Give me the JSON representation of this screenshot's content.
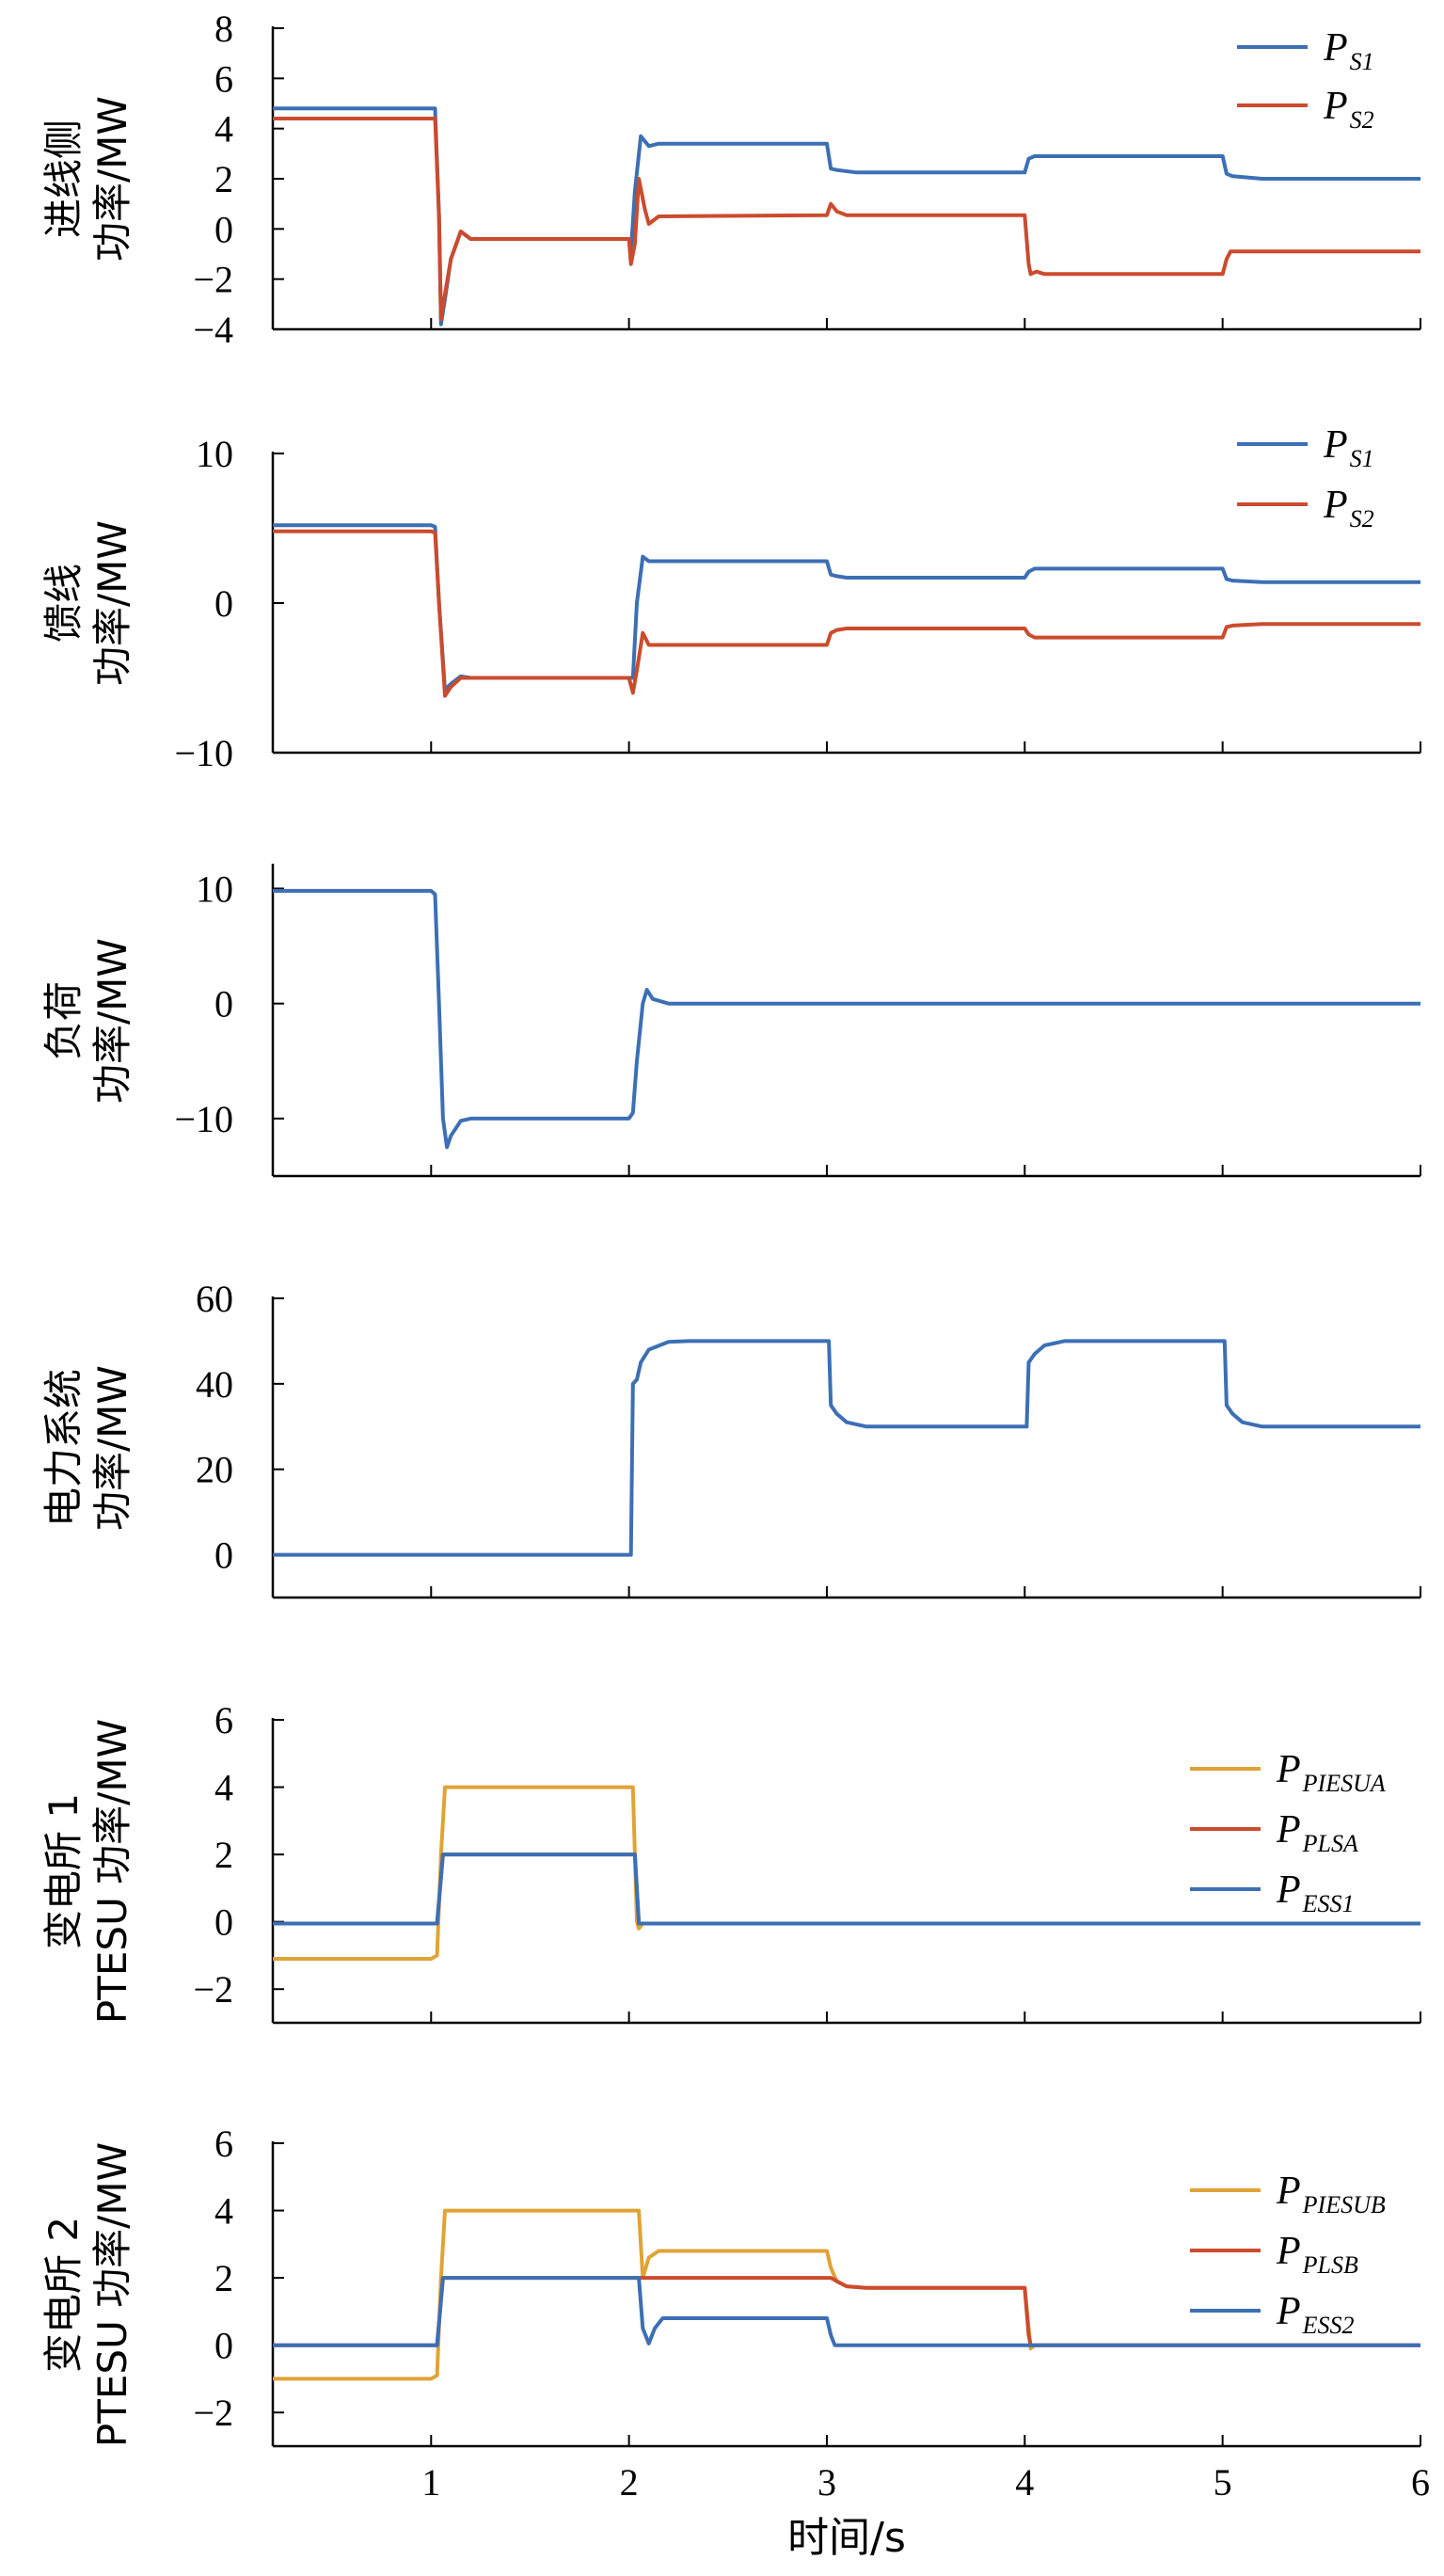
{
  "colors": {
    "blue": "#3c6fb4",
    "red": "#cb4b2d",
    "orange": "#e0a336",
    "axis": "#000000"
  },
  "chart_data": [
    {
      "type": "line",
      "ylabel": [
        "进线侧",
        "功率/MW"
      ],
      "ylim": [
        -4,
        8
      ],
      "yticks": [
        -4,
        -2,
        0,
        2,
        4,
        6,
        8
      ],
      "xlim": [
        0.2,
        6
      ],
      "xticks": [
        1,
        2,
        3,
        4,
        5,
        6
      ],
      "legend": "top-right",
      "series": [
        {
          "P": "P",
          "sub": "S1",
          "color": "blue",
          "points": [
            [
              0.2,
              4.8
            ],
            [
              1.0,
              4.8
            ],
            [
              1.02,
              4.8
            ],
            [
              1.04,
              0.5
            ],
            [
              1.05,
              -3.8
            ],
            [
              1.07,
              -2.8
            ],
            [
              1.1,
              -1.2
            ],
            [
              1.15,
              -0.1
            ],
            [
              1.2,
              -0.4
            ],
            [
              1.3,
              -0.4
            ],
            [
              2.0,
              -0.4
            ],
            [
              2.01,
              -0.9
            ],
            [
              2.03,
              1.5
            ],
            [
              2.06,
              3.7
            ],
            [
              2.1,
              3.3
            ],
            [
              2.15,
              3.4
            ],
            [
              3.0,
              3.4
            ],
            [
              3.02,
              2.4
            ],
            [
              3.05,
              2.35
            ],
            [
              3.15,
              2.25
            ],
            [
              4.0,
              2.25
            ],
            [
              4.02,
              2.8
            ],
            [
              4.05,
              2.9
            ],
            [
              5.0,
              2.9
            ],
            [
              5.02,
              2.2
            ],
            [
              5.05,
              2.1
            ],
            [
              5.2,
              2.0
            ],
            [
              6.0,
              2.0
            ]
          ]
        },
        {
          "P": "P",
          "sub": "S2",
          "color": "red",
          "points": [
            [
              0.2,
              4.4
            ],
            [
              1.0,
              4.4
            ],
            [
              1.02,
              4.4
            ],
            [
              1.04,
              0.5
            ],
            [
              1.05,
              -3.6
            ],
            [
              1.07,
              -2.6
            ],
            [
              1.1,
              -1.2
            ],
            [
              1.15,
              -0.1
            ],
            [
              1.2,
              -0.4
            ],
            [
              1.3,
              -0.4
            ],
            [
              2.0,
              -0.4
            ],
            [
              2.01,
              -1.4
            ],
            [
              2.03,
              -0.6
            ],
            [
              2.05,
              2.0
            ],
            [
              2.08,
              0.8
            ],
            [
              2.1,
              0.2
            ],
            [
              2.15,
              0.5
            ],
            [
              3.0,
              0.55
            ],
            [
              3.02,
              1.0
            ],
            [
              3.05,
              0.7
            ],
            [
              3.1,
              0.55
            ],
            [
              4.0,
              0.55
            ],
            [
              4.02,
              -1.4
            ],
            [
              4.03,
              -1.8
            ],
            [
              4.06,
              -1.7
            ],
            [
              4.1,
              -1.8
            ],
            [
              5.0,
              -1.8
            ],
            [
              5.02,
              -1.2
            ],
            [
              5.04,
              -0.9
            ],
            [
              5.1,
              -0.9
            ],
            [
              6.0,
              -0.9
            ]
          ]
        }
      ]
    },
    {
      "type": "line",
      "ylabel": [
        "馈线",
        "功率/MW"
      ],
      "ylim": [
        -10,
        10
      ],
      "yticks": [
        -10,
        0,
        10
      ],
      "xlim": [
        0.2,
        6
      ],
      "xticks": [
        1,
        2,
        3,
        4,
        5,
        6
      ],
      "legend": "top-right",
      "series": [
        {
          "P": "P",
          "sub": "S1",
          "color": "blue",
          "points": [
            [
              0.2,
              5.2
            ],
            [
              1.0,
              5.2
            ],
            [
              1.02,
              5.1
            ],
            [
              1.04,
              0
            ],
            [
              1.07,
              -5.8
            ],
            [
              1.1,
              -5.4
            ],
            [
              1.15,
              -4.9
            ],
            [
              1.2,
              -5.0
            ],
            [
              2.0,
              -5.0
            ],
            [
              2.02,
              -5.0
            ],
            [
              2.04,
              0
            ],
            [
              2.07,
              3.1
            ],
            [
              2.1,
              2.8
            ],
            [
              2.15,
              2.8
            ],
            [
              3.0,
              2.8
            ],
            [
              3.02,
              1.9
            ],
            [
              3.05,
              1.8
            ],
            [
              3.1,
              1.7
            ],
            [
              4.0,
              1.7
            ],
            [
              4.02,
              2.1
            ],
            [
              4.05,
              2.3
            ],
            [
              5.0,
              2.3
            ],
            [
              5.02,
              1.6
            ],
            [
              5.05,
              1.5
            ],
            [
              5.2,
              1.4
            ],
            [
              6.0,
              1.4
            ]
          ]
        },
        {
          "P": "P",
          "sub": "S2",
          "color": "red",
          "points": [
            [
              0.2,
              4.8
            ],
            [
              1.0,
              4.8
            ],
            [
              1.02,
              4.7
            ],
            [
              1.04,
              0
            ],
            [
              1.07,
              -6.2
            ],
            [
              1.1,
              -5.6
            ],
            [
              1.15,
              -5.0
            ],
            [
              1.2,
              -5.0
            ],
            [
              2.0,
              -5.0
            ],
            [
              2.02,
              -6.0
            ],
            [
              2.04,
              -4.5
            ],
            [
              2.07,
              -2.0
            ],
            [
              2.1,
              -2.8
            ],
            [
              2.15,
              -2.8
            ],
            [
              3.0,
              -2.8
            ],
            [
              3.02,
              -2.0
            ],
            [
              3.05,
              -1.8
            ],
            [
              3.1,
              -1.7
            ],
            [
              4.0,
              -1.7
            ],
            [
              4.02,
              -2.1
            ],
            [
              4.05,
              -2.3
            ],
            [
              5.0,
              -2.3
            ],
            [
              5.02,
              -1.6
            ],
            [
              5.05,
              -1.5
            ],
            [
              5.2,
              -1.4
            ],
            [
              6.0,
              -1.4
            ]
          ]
        }
      ]
    },
    {
      "type": "line",
      "ylabel": [
        "负荷",
        "功率/MW"
      ],
      "ylim": [
        -15,
        12
      ],
      "yticks": [
        -10,
        0,
        10
      ],
      "xlim": [
        0.2,
        6
      ],
      "xticks": [
        1,
        2,
        3,
        4,
        5,
        6
      ],
      "series": [
        {
          "color": "blue",
          "points": [
            [
              0.2,
              9.8
            ],
            [
              1.0,
              9.8
            ],
            [
              1.02,
              9.5
            ],
            [
              1.04,
              0
            ],
            [
              1.06,
              -10
            ],
            [
              1.08,
              -12.5
            ],
            [
              1.1,
              -11.5
            ],
            [
              1.15,
              -10.2
            ],
            [
              1.2,
              -10.0
            ],
            [
              2.0,
              -10.0
            ],
            [
              2.02,
              -9.5
            ],
            [
              2.04,
              -5
            ],
            [
              2.07,
              0
            ],
            [
              2.09,
              1.2
            ],
            [
              2.12,
              0.4
            ],
            [
              2.2,
              0
            ],
            [
              6.0,
              0
            ]
          ]
        }
      ]
    },
    {
      "type": "line",
      "ylabel": [
        "电力系统",
        "功率/MW"
      ],
      "ylim": [
        -10,
        60
      ],
      "yticks": [
        0,
        20,
        40,
        60
      ],
      "xlim": [
        0.2,
        6
      ],
      "xticks": [
        1,
        2,
        3,
        4,
        5,
        6
      ],
      "series": [
        {
          "color": "blue",
          "points": [
            [
              0.2,
              0
            ],
            [
              2.0,
              0
            ],
            [
              2.01,
              0
            ],
            [
              2.02,
              40
            ],
            [
              2.04,
              41
            ],
            [
              2.06,
              45
            ],
            [
              2.1,
              48
            ],
            [
              2.2,
              49.8
            ],
            [
              2.3,
              50
            ],
            [
              3.0,
              50
            ],
            [
              3.01,
              50
            ],
            [
              3.02,
              35
            ],
            [
              3.05,
              33
            ],
            [
              3.1,
              31
            ],
            [
              3.2,
              30
            ],
            [
              4.0,
              30
            ],
            [
              4.01,
              30
            ],
            [
              4.02,
              45
            ],
            [
              4.05,
              47
            ],
            [
              4.1,
              49
            ],
            [
              4.2,
              50
            ],
            [
              5.0,
              50
            ],
            [
              5.01,
              50
            ],
            [
              5.02,
              35
            ],
            [
              5.05,
              33
            ],
            [
              5.1,
              31
            ],
            [
              5.2,
              30
            ],
            [
              6.0,
              30
            ]
          ]
        }
      ]
    },
    {
      "type": "line",
      "ylabel": [
        "变电所 1",
        "PTESU 功率/MW"
      ],
      "ylim": [
        -3,
        6
      ],
      "yticks": [
        -2,
        0,
        2,
        4,
        6
      ],
      "xlim": [
        0.2,
        6
      ],
      "xticks": [
        1,
        2,
        3,
        4,
        5,
        6
      ],
      "legend": "right",
      "series": [
        {
          "P": "P",
          "sub": "PIESUA",
          "color": "orange",
          "points": [
            [
              0.2,
              -1.1
            ],
            [
              1.0,
              -1.1
            ],
            [
              1.03,
              -1.0
            ],
            [
              1.05,
              2.0
            ],
            [
              1.07,
              4.0
            ],
            [
              2.0,
              4.0
            ],
            [
              2.02,
              4.0
            ],
            [
              2.04,
              0
            ],
            [
              2.05,
              -0.2
            ],
            [
              2.07,
              -0.05
            ],
            [
              6.0,
              -0.05
            ]
          ]
        },
        {
          "P": "P",
          "sub": "PLSA",
          "color": "red",
          "points": [
            [
              0.2,
              -0.05
            ],
            [
              1.03,
              -0.05
            ],
            [
              1.06,
              2.0
            ],
            [
              2.0,
              2.0
            ],
            [
              2.03,
              2.0
            ],
            [
              2.05,
              -0.05
            ],
            [
              6.0,
              -0.05
            ]
          ]
        },
        {
          "P": "P",
          "sub": "ESS1",
          "color": "blue",
          "points": [
            [
              0.2,
              -0.05
            ],
            [
              1.03,
              -0.05
            ],
            [
              1.06,
              2.0
            ],
            [
              2.0,
              2.0
            ],
            [
              2.03,
              2.0
            ],
            [
              2.05,
              -0.05
            ],
            [
              6.0,
              -0.05
            ]
          ]
        }
      ]
    },
    {
      "type": "line",
      "ylabel": [
        "变电所 2",
        "PTESU 功率/MW"
      ],
      "ylim": [
        -3,
        6
      ],
      "yticks": [
        -2,
        0,
        2,
        4,
        6
      ],
      "xlim": [
        0.2,
        6
      ],
      "xticks": [
        1,
        2,
        3,
        4,
        5,
        6
      ],
      "xlabel": "时间/s",
      "legend": "right",
      "series": [
        {
          "P": "P",
          "sub": "PIESUB",
          "color": "orange",
          "points": [
            [
              0.2,
              -1.0
            ],
            [
              1.0,
              -1.0
            ],
            [
              1.03,
              -0.9
            ],
            [
              1.05,
              2.0
            ],
            [
              1.07,
              4.0
            ],
            [
              2.05,
              4.0
            ],
            [
              2.07,
              2.0
            ],
            [
              2.1,
              2.6
            ],
            [
              2.15,
              2.8
            ],
            [
              3.0,
              2.8
            ],
            [
              3.02,
              2.3
            ],
            [
              3.05,
              1.9
            ],
            [
              3.1,
              1.75
            ],
            [
              3.2,
              1.7
            ],
            [
              4.0,
              1.7
            ],
            [
              4.02,
              0.5
            ],
            [
              4.03,
              -0.1
            ],
            [
              4.05,
              0
            ],
            [
              6.0,
              0
            ]
          ]
        },
        {
          "P": "P",
          "sub": "PLSB",
          "color": "red",
          "points": [
            [
              0.2,
              0
            ],
            [
              1.03,
              0
            ],
            [
              1.06,
              2.0
            ],
            [
              3.0,
              2.0
            ],
            [
              3.02,
              2.0
            ],
            [
              3.05,
              1.9
            ],
            [
              3.1,
              1.75
            ],
            [
              3.2,
              1.7
            ],
            [
              4.0,
              1.7
            ],
            [
              4.02,
              0.3
            ],
            [
              4.03,
              0
            ],
            [
              6.0,
              0
            ]
          ]
        },
        {
          "P": "P",
          "sub": "ESS2",
          "color": "blue",
          "points": [
            [
              0.2,
              0
            ],
            [
              1.03,
              0
            ],
            [
              1.06,
              2.0
            ],
            [
              2.05,
              2.0
            ],
            [
              2.07,
              0.5
            ],
            [
              2.1,
              0.05
            ],
            [
              2.13,
              0.5
            ],
            [
              2.17,
              0.8
            ],
            [
              3.0,
              0.8
            ],
            [
              3.02,
              0.3
            ],
            [
              3.04,
              0
            ],
            [
              6.0,
              0
            ]
          ]
        }
      ]
    }
  ]
}
